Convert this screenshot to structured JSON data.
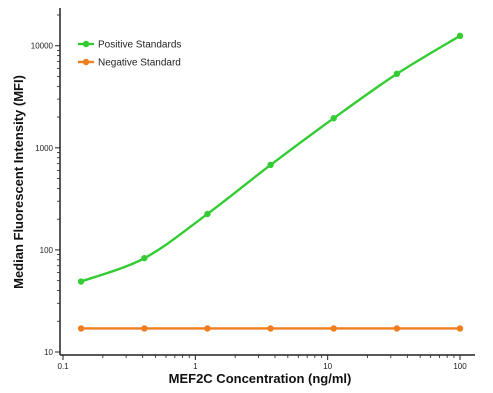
{
  "chart_data": {
    "type": "line",
    "xlabel": "MEF2C Concentration (ng/ml)",
    "ylabel": "Median  Fluorescent Intensity  (MFI)",
    "x_scale": "log",
    "y_scale": "log",
    "xlim": [
      0.1,
      100
    ],
    "ylim": [
      10,
      20000
    ],
    "x_ticks": [
      {
        "value": 0.1,
        "label": "0.1"
      },
      {
        "value": 1,
        "label": "1"
      },
      {
        "value": 10,
        "label": "10"
      },
      {
        "value": 100,
        "label": "100"
      }
    ],
    "y_ticks": [
      {
        "value": 10,
        "label": "10"
      },
      {
        "value": 100,
        "label": "100"
      },
      {
        "value": 1000,
        "label": "1000"
      },
      {
        "value": 10000,
        "label": "10000"
      }
    ],
    "grid": false,
    "legend_position": "top-left",
    "series": [
      {
        "name": "Positive Standards",
        "color": "#33cc33",
        "x": [
          0.137,
          0.412,
          1.235,
          3.704,
          11.11,
          33.33,
          100
        ],
        "y": [
          49,
          83,
          225,
          680,
          1950,
          5300,
          12500
        ]
      },
      {
        "name": "Negative Standard",
        "color": "#f07d1e",
        "x": [
          0.137,
          0.412,
          1.235,
          3.704,
          11.11,
          33.33,
          100
        ],
        "y": [
          17,
          17,
          17,
          17,
          17,
          17,
          17
        ]
      }
    ]
  }
}
